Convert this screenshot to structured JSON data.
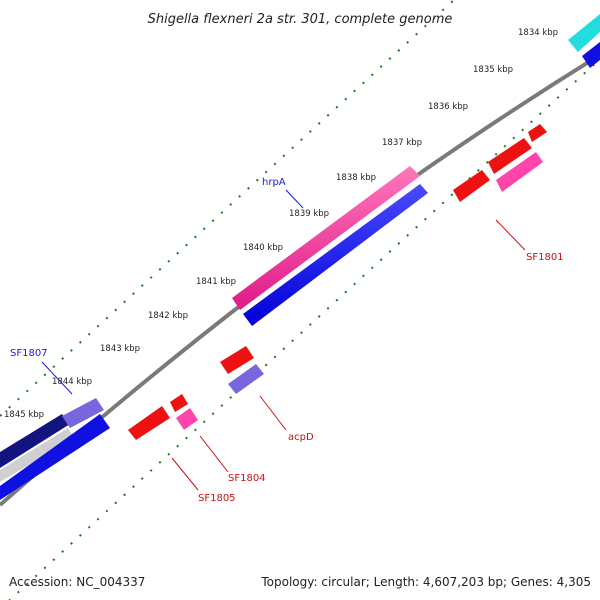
{
  "title": "Shigella flexneri 2a str. 301, complete genome",
  "accession": "Accession: NC_004337",
  "summary": "Topology: circular; Length: 4,607,203 bp; Genes: 4,305",
  "ruler_labels": [
    "1834 kbp",
    "1835 kbp",
    "1836 kbp",
    "1837 kbp",
    "1838 kbp",
    "1839 kbp",
    "1840 kbp",
    "1841 kbp",
    "1842 kbp",
    "1843 kbp",
    "1844 kbp",
    "1845 kbp"
  ],
  "gene_labels": {
    "hrpA": "hrpA",
    "SF1807": "SF1807",
    "SF1801": "SF1801",
    "acpD": "acpD",
    "SF1804": "SF1804",
    "SF1805": "SF1805"
  },
  "colors": {
    "backbone": "#7a7a7a",
    "ruler_ticks": "#1e7a1e",
    "forward_cds": "#1010e0",
    "forward_gene": "#ff3a9a",
    "reverse_cds": "#ee1111",
    "reverse_gene": "#ff44aa",
    "misc_feature": "#7766dd",
    "rna": "#22dddd",
    "dark_cds": "#141480"
  }
}
